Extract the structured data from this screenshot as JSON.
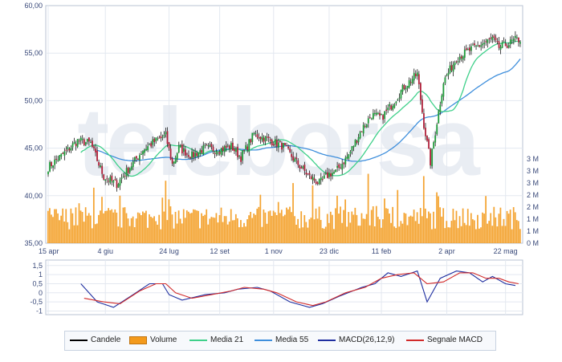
{
  "chart_data": [
    {
      "type": "candlestick",
      "watermark": "teleborsa",
      "x_tick_labels": [
        "15 apr",
        "4 giu",
        "24 lug",
        "12 set",
        "1 nov",
        "23 dic",
        "11 feb",
        "2 apr",
        "22 mag"
      ],
      "price_axis": {
        "ylim": [
          35,
          60
        ],
        "tick_labels": [
          "35,00",
          "40,00",
          "45,00",
          "50,00",
          "55,00",
          "60,00"
        ],
        "grid": true
      },
      "volume_axis": {
        "tick_labels": [
          "0 M",
          "1 M",
          "1 M",
          "2 M",
          "2 M",
          "3 M",
          "3 M",
          "3 M"
        ]
      },
      "series": [
        {
          "name": "Candele",
          "color": "#000000",
          "kind": "candlestick",
          "close_path": [
            [
              0,
              43.0
            ],
            [
              10,
              44.5
            ],
            [
              18,
              45.8
            ],
            [
              26,
              45.5
            ],
            [
              34,
              42.0
            ],
            [
              42,
              41.2
            ],
            [
              50,
              43.0
            ],
            [
              58,
              44.8
            ],
            [
              66,
              45.8
            ],
            [
              72,
              46.3
            ],
            [
              76,
              43.3
            ],
            [
              80,
              45.0
            ],
            [
              88,
              44.2
            ],
            [
              96,
              45.0
            ],
            [
              104,
              44.8
            ],
            [
              112,
              45.2
            ],
            [
              118,
              44.0
            ],
            [
              126,
              46.5
            ],
            [
              136,
              45.8
            ],
            [
              144,
              45.2
            ],
            [
              152,
              43.5
            ],
            [
              160,
              42.0
            ],
            [
              166,
              41.3
            ],
            [
              172,
              42.3
            ],
            [
              176,
              42.5
            ],
            [
              184,
              44.3
            ],
            [
              192,
              47.0
            ],
            [
              198,
              48.5
            ],
            [
              204,
              48.2
            ],
            [
              210,
              49.5
            ],
            [
              218,
              51.5
            ],
            [
              226,
              52.8
            ],
            [
              230,
              47.5
            ],
            [
              234,
              43.5
            ],
            [
              242,
              52.0
            ],
            [
              250,
              54.5
            ],
            [
              258,
              55.3
            ],
            [
              266,
              56.0
            ],
            [
              272,
              56.5
            ],
            [
              276,
              55.6
            ],
            [
              282,
              56.0
            ],
            [
              286,
              56.4
            ]
          ]
        },
        {
          "name": "Volume",
          "color": "#f39a1c",
          "kind": "bar",
          "units": "M",
          "spikes": [
            [
              28,
              2.4
            ],
            [
              72,
              2.7
            ],
            [
              150,
              2.6
            ],
            [
              162,
              2.5
            ],
            [
              196,
              3.0
            ],
            [
              214,
              2.3
            ],
            [
              230,
              2.9
            ],
            [
              238,
              2.2
            ]
          ]
        },
        {
          "name": "Media 21",
          "color": "#3fd08a",
          "kind": "line"
        },
        {
          "name": "Media 55",
          "color": "#3f8fdc",
          "kind": "line"
        }
      ]
    },
    {
      "type": "line",
      "x_tick_labels": [],
      "y_tick_labels": [
        "1,5",
        "1",
        "0,5",
        "0",
        "-0,5",
        "-1"
      ],
      "ylim": [
        -1.2,
        1.8
      ],
      "series": [
        {
          "name": "MACD(26,12,9)",
          "color": "#1f2fa0",
          "points": [
            [
              20,
              0.5
            ],
            [
              30,
              -0.5
            ],
            [
              40,
              -0.8
            ],
            [
              52,
              -0.1
            ],
            [
              62,
              0.5
            ],
            [
              70,
              0.5
            ],
            [
              74,
              -0.1
            ],
            [
              82,
              -0.4
            ],
            [
              96,
              -0.1
            ],
            [
              108,
              0.0
            ],
            [
              116,
              0.2
            ],
            [
              128,
              0.3
            ],
            [
              136,
              0.1
            ],
            [
              148,
              -0.5
            ],
            [
              160,
              -0.8
            ],
            [
              168,
              -0.6
            ],
            [
              178,
              -0.2
            ],
            [
              192,
              0.3
            ],
            [
              200,
              0.5
            ],
            [
              208,
              1.1
            ],
            [
              216,
              0.9
            ],
            [
              226,
              1.2
            ],
            [
              232,
              -0.5
            ],
            [
              240,
              0.8
            ],
            [
              250,
              1.2
            ],
            [
              258,
              1.1
            ],
            [
              266,
              0.6
            ],
            [
              272,
              0.9
            ],
            [
              280,
              0.5
            ],
            [
              286,
              0.4
            ]
          ]
        },
        {
          "name": "Segnale MACD",
          "color": "#d12a2a",
          "points": [
            [
              22,
              -0.3
            ],
            [
              34,
              -0.5
            ],
            [
              44,
              -0.6
            ],
            [
              56,
              0.1
            ],
            [
              66,
              0.5
            ],
            [
              72,
              0.5
            ],
            [
              78,
              0.0
            ],
            [
              88,
              -0.3
            ],
            [
              100,
              -0.1
            ],
            [
              112,
              0.1
            ],
            [
              120,
              0.3
            ],
            [
              132,
              0.2
            ],
            [
              140,
              0.0
            ],
            [
              152,
              -0.5
            ],
            [
              162,
              -0.7
            ],
            [
              170,
              -0.5
            ],
            [
              182,
              0.0
            ],
            [
              194,
              0.3
            ],
            [
              204,
              0.8
            ],
            [
              214,
              1.0
            ],
            [
              224,
              1.1
            ],
            [
              232,
              0.5
            ],
            [
              242,
              0.6
            ],
            [
              252,
              1.1
            ],
            [
              260,
              1.1
            ],
            [
              268,
              0.8
            ],
            [
              276,
              0.8
            ],
            [
              282,
              0.6
            ],
            [
              288,
              0.5
            ]
          ]
        }
      ]
    }
  ],
  "legend": [
    {
      "label": "Candele",
      "color": "#000000",
      "kind": "line"
    },
    {
      "label": "Volume",
      "color": "#f39a1c",
      "kind": "box"
    },
    {
      "label": "Media 21",
      "color": "#3fd08a",
      "kind": "line"
    },
    {
      "label": "Media 55",
      "color": "#3f8fdc",
      "kind": "line"
    },
    {
      "label": "MACD(26,12,9)",
      "color": "#1f2fa0",
      "kind": "line"
    },
    {
      "label": "Segnale MACD",
      "color": "#d12a2a",
      "kind": "line"
    }
  ]
}
